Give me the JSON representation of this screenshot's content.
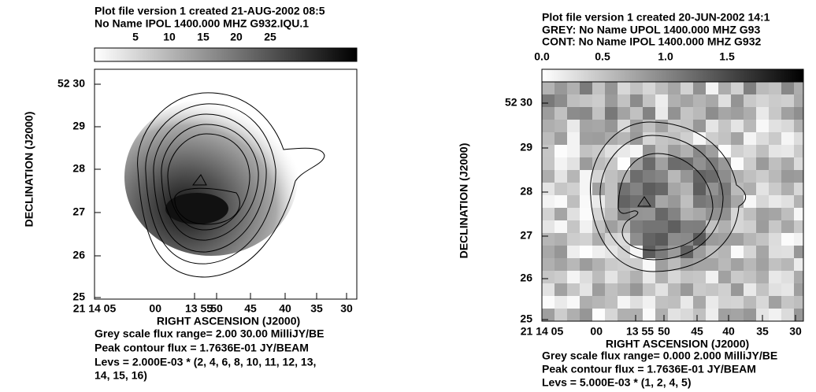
{
  "panels": [
    {
      "title_lines": [
        "Plot file version 1  created 21-AUG-2002 08:5",
        "No Name  IPOL  1400.000 MHZ  G932.IQU.1"
      ],
      "colorbar_ticks": [
        "5",
        "10",
        "15",
        "20",
        "25"
      ],
      "y_axis_label": "DECLINATION (J2000)",
      "y_ticks": [
        "52 30",
        "29",
        "28",
        "27",
        "26",
        "25"
      ],
      "x_ticks": [
        "21 14 05",
        "00",
        "13 55",
        "50",
        "45",
        "40",
        "35",
        "30"
      ],
      "x_axis_label": "RIGHT ASCENSION (J2000)",
      "notes": [
        "Grey scale flux range= 2.00 30.00 MilliJY/BE",
        "Peak contour flux =  1.7636E-01 JY/BEAM",
        "Levs = 2.000E-03 * (2, 4, 6, 8, 10, 11, 12, 13,",
        "14, 15, 16)"
      ]
    },
    {
      "title_lines": [
        "Plot file version 1  created 20-JUN-2002 14:1",
        "GREY: No Name  UPOL  1400.000 MHZ  G93",
        "CONT: No Name  IPOL  1400.000 MHZ  G932"
      ],
      "colorbar_ticks": [
        "0.0",
        "0.5",
        "1.0",
        "1.5"
      ],
      "y_axis_label": "DECLINATION (J2000)",
      "y_ticks": [
        "52 30",
        "29",
        "28",
        "27",
        "26",
        "25"
      ],
      "x_ticks": [
        "21 14 05",
        "00",
        "13 55",
        "50",
        "45",
        "40",
        "35",
        "30"
      ],
      "x_axis_label": "RIGHT ASCENSION (J2000)",
      "notes": [
        "Grey scale flux range= 0.000 2.000 MilliJY/BE",
        "Peak contour flux =  1.7636E-01 JY/BEAM",
        "Levs = 5.000E-03 * (1, 2, 4, 5)"
      ]
    }
  ]
}
